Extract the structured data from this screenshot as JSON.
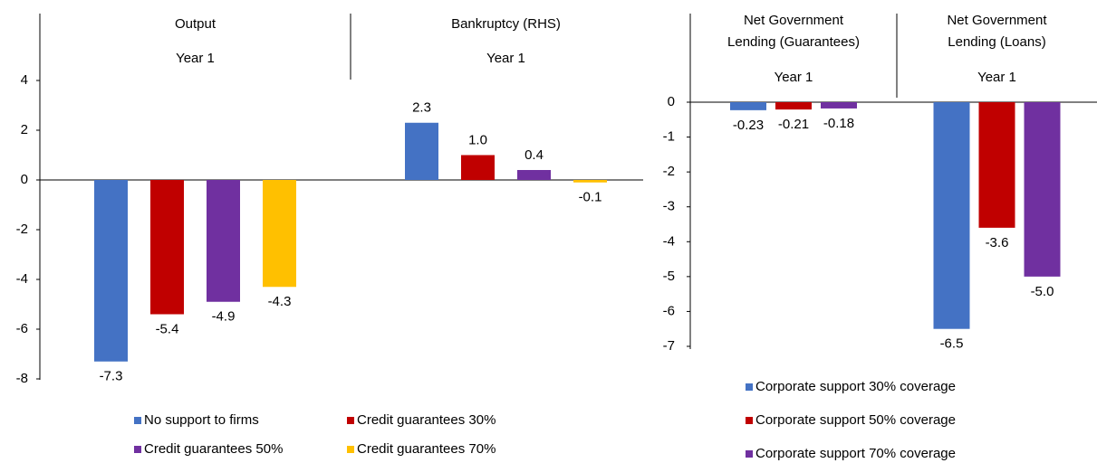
{
  "chart_data": [
    {
      "type": "bar",
      "panels": [
        {
          "title": [
            "Output"
          ],
          "category": "Year 1"
        },
        {
          "title": [
            "Bankruptcy (RHS)"
          ],
          "category": "Year 1"
        }
      ],
      "series": [
        {
          "name": "No support to firms",
          "color": "#4472c4",
          "values": [
            -7.3,
            2.3
          ],
          "value_labels": [
            "-7.3",
            "2.3"
          ]
        },
        {
          "name": "Credit guarantees 30%",
          "color": "#c00000",
          "values": [
            -5.4,
            1.0
          ],
          "value_labels": [
            "-5.4",
            "1.0"
          ]
        },
        {
          "name": "Credit guarantees 50%",
          "color": "#7030a0",
          "values": [
            -4.9,
            0.4
          ],
          "value_labels": [
            "-4.9",
            "0.4"
          ]
        },
        {
          "name": "Credit guarantees 70%",
          "color": "#ffc000",
          "values": [
            -4.3,
            -0.1
          ],
          "value_labels": [
            "-4.3",
            "-0.1"
          ]
        }
      ],
      "ylim": [
        -8,
        4
      ],
      "yticks": [
        -8,
        -6,
        -4,
        -2,
        0,
        2,
        4
      ],
      "legend": "bottom"
    },
    {
      "type": "bar",
      "panels": [
        {
          "title": [
            "Net Government",
            "Lending (Guarantees)"
          ],
          "category": "Year 1"
        },
        {
          "title": [
            "Net Government",
            "Lending (Loans)"
          ],
          "category": "Year 1"
        }
      ],
      "series": [
        {
          "name": "Corporate support 30% coverage",
          "color": "#4472c4",
          "values": [
            -0.23,
            -6.5
          ],
          "value_labels": [
            "-0.23",
            "-6.5"
          ]
        },
        {
          "name": "Corporate support 50% coverage",
          "color": "#c00000",
          "values": [
            -0.21,
            -3.6
          ],
          "value_labels": [
            "-0.21",
            "-3.6"
          ]
        },
        {
          "name": "Corporate support 70% coverage",
          "color": "#7030a0",
          "values": [
            -0.18,
            -5.0
          ],
          "value_labels": [
            "-0.18",
            "-5.0"
          ]
        }
      ],
      "ylim": [
        -7,
        0
      ],
      "yticks": [
        -7,
        -6,
        -5,
        -4,
        -3,
        -2,
        -1,
        0
      ],
      "legend": "bottom"
    }
  ]
}
